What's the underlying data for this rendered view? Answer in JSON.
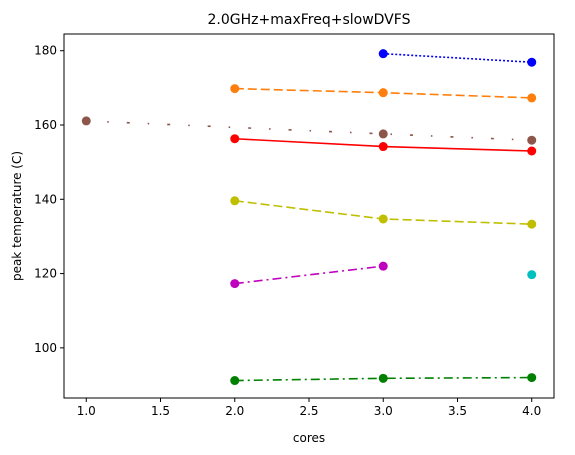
{
  "chart_data": {
    "type": "line",
    "title": "2.0GHz+maxFreq+slowDVFS",
    "xlabel": "cores",
    "ylabel": "peak temperature (C)",
    "xlim": [
      0.85,
      4.15
    ],
    "ylim": [
      86.5,
      184.5
    ],
    "xticks": [
      1.0,
      1.5,
      2.0,
      2.5,
      3.0,
      3.5,
      4.0
    ],
    "xtick_labels": [
      "1.0",
      "1.5",
      "2.0",
      "2.5",
      "3.0",
      "3.5",
      "4.0"
    ],
    "yticks": [
      100,
      120,
      140,
      160,
      180
    ],
    "ytick_labels": [
      "100",
      "120",
      "140",
      "160",
      "180"
    ],
    "grid": false,
    "legend": "none",
    "series": [
      {
        "color": "#0000ff",
        "linestyle": "dotted",
        "marker": "circle",
        "x": [
          3,
          4
        ],
        "y": [
          179.2,
          176.9
        ]
      },
      {
        "color": "#ff7f0e",
        "linestyle": "dashed",
        "marker": "circle",
        "x": [
          2,
          3,
          4
        ],
        "y": [
          169.8,
          168.7,
          167.3
        ]
      },
      {
        "color": "#8c564b",
        "linestyle": "loose-dashdot",
        "marker": "circle",
        "x": [
          1,
          3,
          4
        ],
        "y": [
          161.1,
          157.6,
          155.9
        ]
      },
      {
        "color": "#ff0000",
        "linestyle": "solid",
        "marker": "circle",
        "x": [
          2,
          3,
          4
        ],
        "y": [
          156.3,
          154.2,
          153.0
        ]
      },
      {
        "color": "#bfbf00",
        "linestyle": "dashed",
        "marker": "circle",
        "x": [
          2,
          3,
          4
        ],
        "y": [
          139.6,
          134.7,
          133.3
        ]
      },
      {
        "color": "#bf00bf",
        "linestyle": "dashdot",
        "marker": "circle",
        "x": [
          2,
          3
        ],
        "y": [
          117.3,
          122.0
        ]
      },
      {
        "color": "#00bfbf",
        "linestyle": "none",
        "marker": "circle",
        "x": [
          4
        ],
        "y": [
          119.7
        ]
      },
      {
        "color": "#008000",
        "linestyle": "dashdot",
        "marker": "circle",
        "x": [
          2,
          3,
          4
        ],
        "y": [
          91.2,
          91.8,
          92.0
        ]
      }
    ]
  }
}
